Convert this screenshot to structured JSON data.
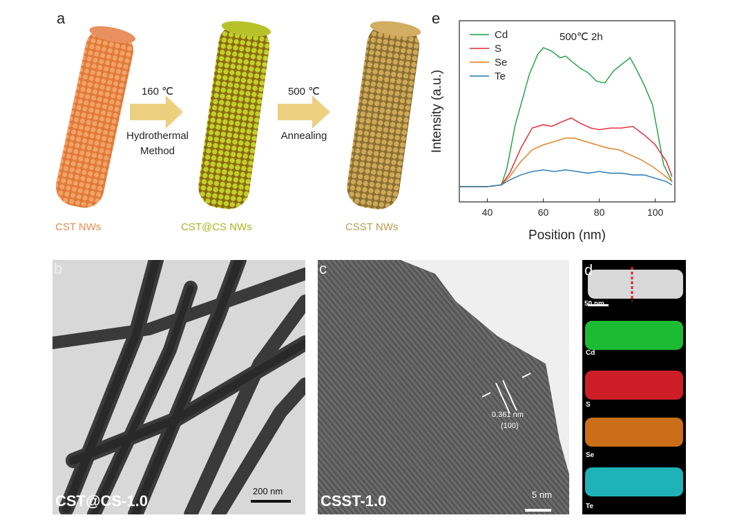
{
  "panel_a": {
    "letter": "a",
    "nanowires": [
      {
        "label": "CST NWs",
        "color": "#e88a4a"
      },
      {
        "label": "CST@CS NWs",
        "color": "#a6b41e"
      },
      {
        "label": "CSST NWs",
        "color": "#b89a4a"
      }
    ],
    "step1": {
      "temp": "160 ℃",
      "line1": "Hydrothermal",
      "line2": "Method"
    },
    "step2": {
      "temp": "500 ℃",
      "line1": "Annealing"
    }
  },
  "panel_b": {
    "letter": "b",
    "sample": "CST@CS-1.0",
    "scale": "200 nm"
  },
  "panel_c": {
    "letter": "c",
    "spacing": "0.361 nm",
    "plane": "(100)",
    "sample": "CSST-1.0",
    "scale": "5 nm"
  },
  "panel_d": {
    "letter": "d",
    "scale": "50 nm",
    "maps": [
      {
        "label": "Cd",
        "color": "#1fcf3a"
      },
      {
        "label": "S",
        "color": "#e3212b"
      },
      {
        "label": "Se",
        "color": "#e07a1c"
      },
      {
        "label": "Te",
        "color": "#22c7cc"
      }
    ]
  },
  "panel_e": {
    "letter": "e"
  },
  "chart_data": {
    "type": "line",
    "annotation": "500℃ 2h",
    "xlabel": "Position (nm)",
    "ylabel": "Intensity (a.u.)",
    "xlim": [
      30,
      107
    ],
    "x_ticks": [
      40,
      60,
      80,
      100
    ],
    "legend_placement": "top-left",
    "y_ticks_shown": false,
    "series": [
      {
        "name": "Cd",
        "color": "#1a9c3c",
        "x": [
          30,
          40,
          45,
          47,
          50,
          53,
          55,
          58,
          60,
          63,
          66,
          68,
          70,
          73,
          76,
          79,
          82,
          85,
          88,
          91,
          93,
          96,
          99,
          101,
          103,
          106
        ],
        "y": [
          0.05,
          0.05,
          0.06,
          0.16,
          0.42,
          0.6,
          0.72,
          0.84,
          0.88,
          0.86,
          0.82,
          0.83,
          0.8,
          0.76,
          0.73,
          0.68,
          0.67,
          0.74,
          0.78,
          0.82,
          0.76,
          0.66,
          0.54,
          0.36,
          0.18,
          0.08
        ]
      },
      {
        "name": "S",
        "color": "#e3212b",
        "x": [
          30,
          40,
          45,
          48,
          52,
          56,
          60,
          63,
          67,
          70,
          73,
          77,
          80,
          84,
          88,
          92,
          96,
          100,
          104,
          106
        ],
        "y": [
          0.05,
          0.05,
          0.06,
          0.13,
          0.28,
          0.4,
          0.42,
          0.41,
          0.44,
          0.46,
          0.43,
          0.4,
          0.39,
          0.4,
          0.4,
          0.41,
          0.36,
          0.3,
          0.2,
          0.11
        ]
      },
      {
        "name": "Se",
        "color": "#e07a1c",
        "x": [
          30,
          40,
          45,
          48,
          52,
          56,
          60,
          64,
          68,
          71,
          75,
          79,
          83,
          87,
          91,
          95,
          99,
          103,
          106
        ],
        "y": [
          0.05,
          0.05,
          0.06,
          0.11,
          0.2,
          0.27,
          0.3,
          0.32,
          0.34,
          0.34,
          0.32,
          0.3,
          0.28,
          0.27,
          0.24,
          0.21,
          0.17,
          0.12,
          0.08
        ]
      },
      {
        "name": "Te",
        "color": "#1f77b4",
        "x": [
          30,
          40,
          45,
          48,
          52,
          56,
          60,
          64,
          68,
          72,
          76,
          80,
          84,
          88,
          92,
          96,
          100,
          104,
          106
        ],
        "y": [
          0.05,
          0.05,
          0.06,
          0.09,
          0.12,
          0.14,
          0.15,
          0.14,
          0.15,
          0.14,
          0.13,
          0.14,
          0.13,
          0.13,
          0.12,
          0.12,
          0.1,
          0.08,
          0.06
        ]
      }
    ]
  }
}
